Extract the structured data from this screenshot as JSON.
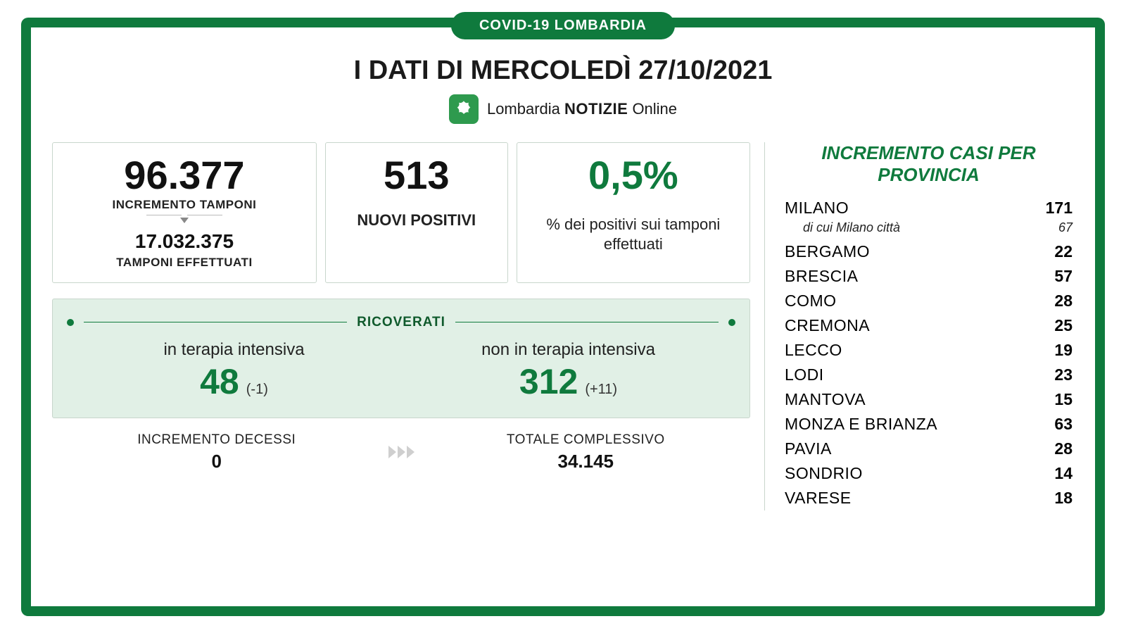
{
  "colors": {
    "green": "#0f7a3d",
    "lightGreen": "#e1f0e6",
    "border": "#c8d6cc",
    "text": "#1a1a1a"
  },
  "badge": "COVID-19 LOMBARDIA",
  "title": "I DATI DI MERCOLEDÌ 27/10/2021",
  "logo": {
    "brand": "Lombardia",
    "notizie": "NOTIZIE",
    "online": "Online"
  },
  "tamponi": {
    "incremento": "96.377",
    "incremento_label": "INCREMENTO TAMPONI",
    "totale": "17.032.375",
    "totale_label": "TAMPONI EFFETTUATI"
  },
  "positivi": {
    "value": "513",
    "label": "NUOVI POSITIVI"
  },
  "percentuale": {
    "value": "0,5%",
    "label": "% dei positivi sui tamponi effettuati"
  },
  "ricoverati": {
    "title": "RICOVERATI",
    "intensiva": {
      "label": "in terapia intensiva",
      "value": "48",
      "delta": "(-1)"
    },
    "non_intensiva": {
      "label": "non in terapia intensiva",
      "value": "312",
      "delta": "(+11)"
    }
  },
  "decessi": {
    "label": "INCREMENTO DECESSI",
    "value": "0"
  },
  "totale_complessivo": {
    "label": "TOTALE COMPLESSIVO",
    "value": "34.145"
  },
  "province": {
    "title": "INCREMENTO CASI PER PROVINCIA",
    "rows": [
      {
        "name": "MILANO",
        "value": "171",
        "sub": {
          "name": "di cui Milano città",
          "value": "67"
        }
      },
      {
        "name": "BERGAMO",
        "value": "22"
      },
      {
        "name": "BRESCIA",
        "value": "57"
      },
      {
        "name": "COMO",
        "value": "28"
      },
      {
        "name": "CREMONA",
        "value": "25"
      },
      {
        "name": "LECCO",
        "value": "19"
      },
      {
        "name": "LODI",
        "value": "23"
      },
      {
        "name": "MANTOVA",
        "value": "15"
      },
      {
        "name": "MONZA E BRIANZA",
        "value": "63"
      },
      {
        "name": "PAVIA",
        "value": "28"
      },
      {
        "name": "SONDRIO",
        "value": "14"
      },
      {
        "name": "VARESE",
        "value": "18"
      }
    ]
  }
}
